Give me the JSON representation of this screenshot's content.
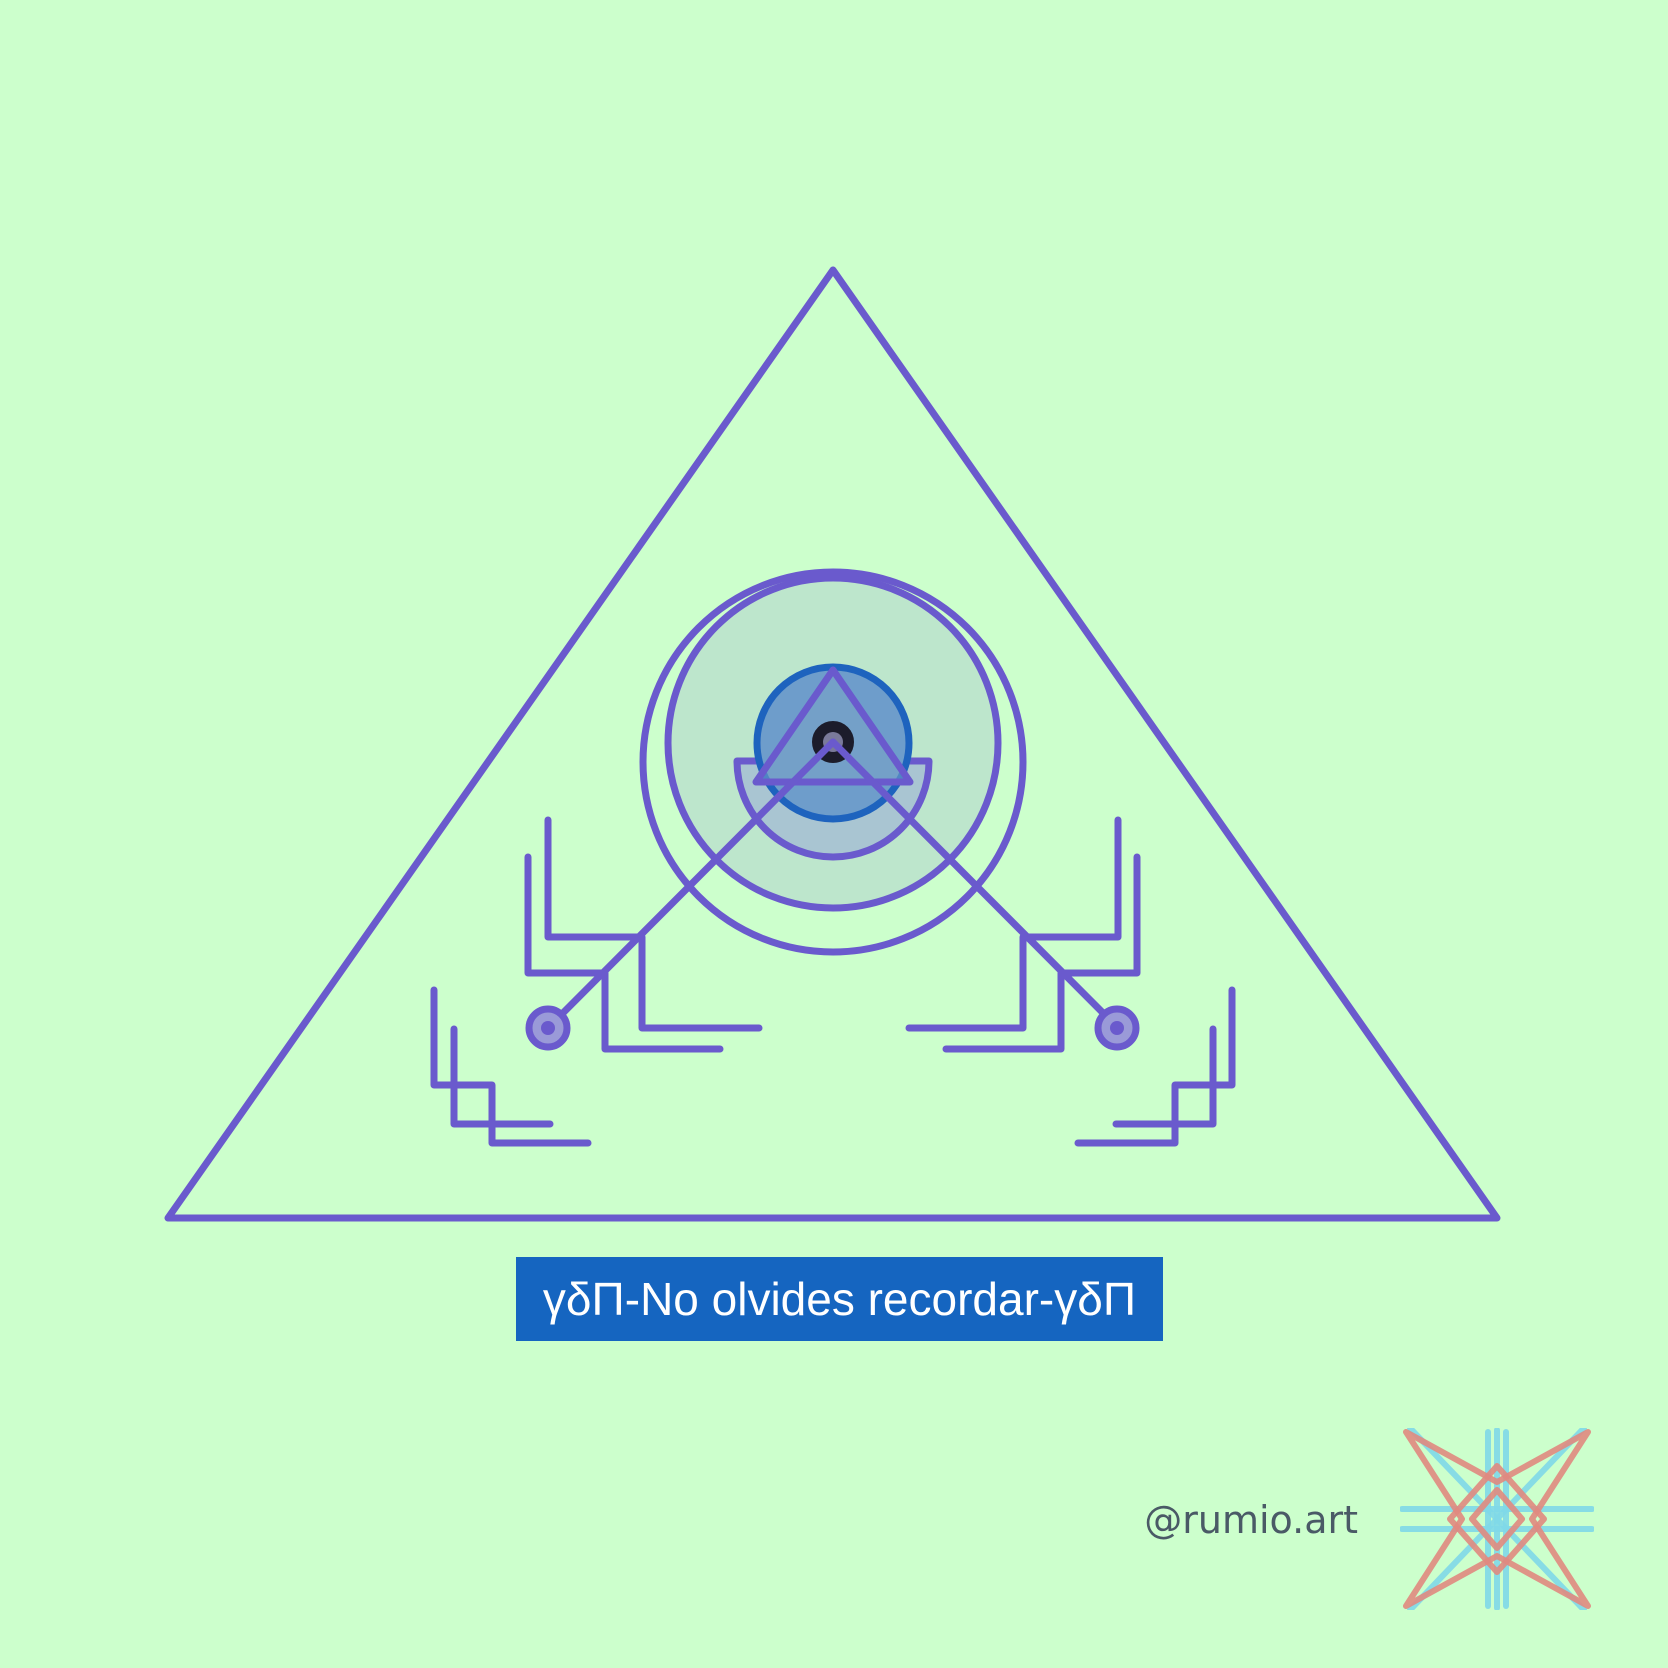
{
  "caption": "γδΠ-No olvides recordar-γδΠ",
  "signature": "@rumio.art",
  "icons": {
    "artwork": "pyramid-eye-sigil",
    "logo": "star-knot-icon"
  },
  "colors": {
    "background": "#ccffcc",
    "line": "#6a5acd",
    "caption_background": "#1565c0",
    "caption_text": "#ffffff",
    "signature_text": "#4a5a66",
    "logo_red": "#e08a80",
    "logo_cyan": "#80d8e8"
  }
}
